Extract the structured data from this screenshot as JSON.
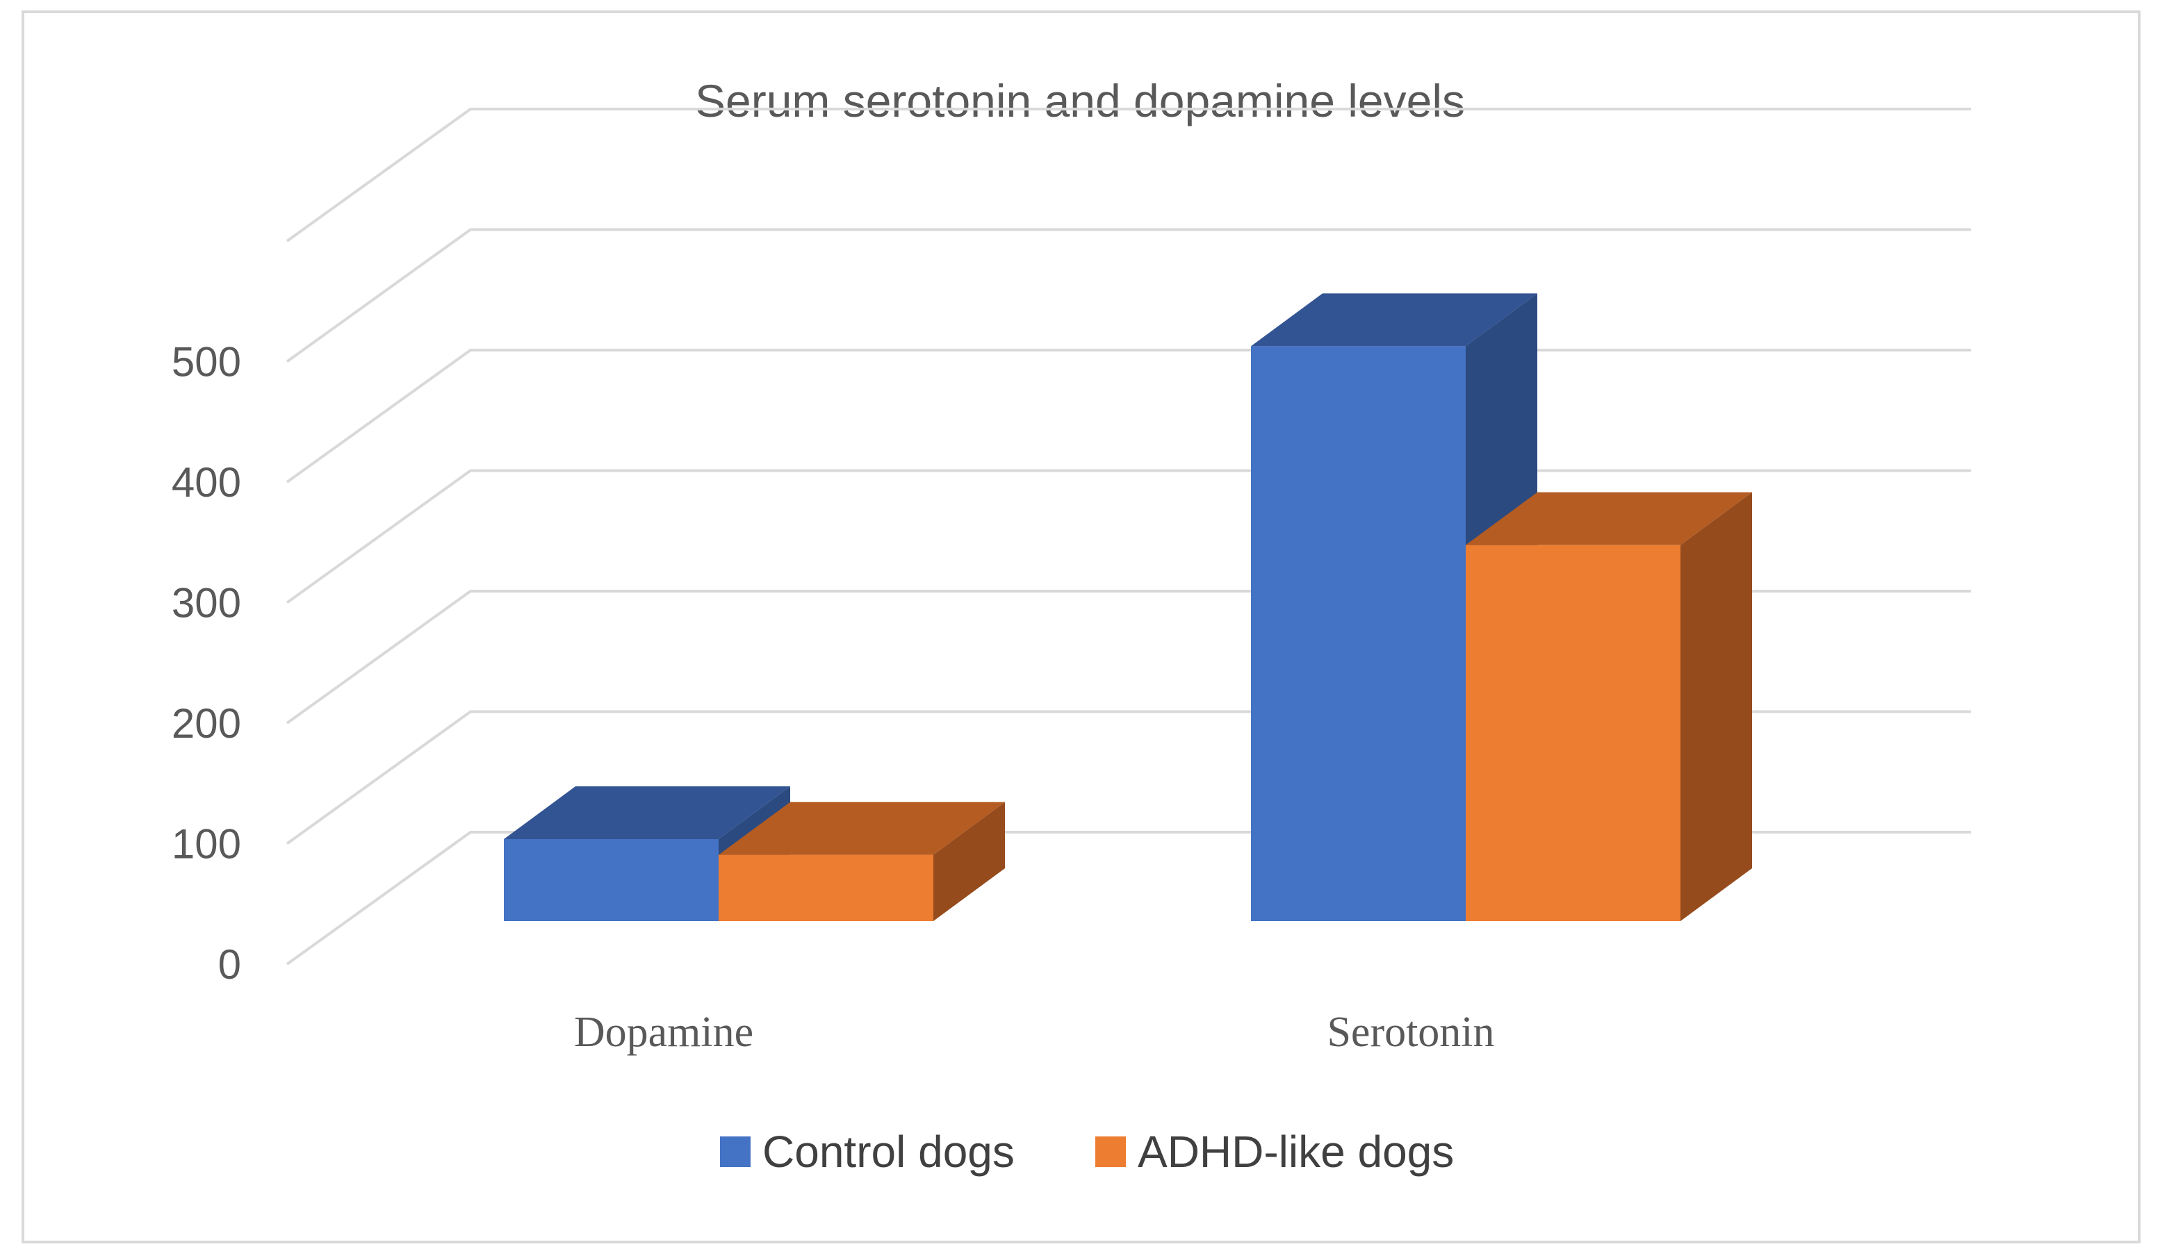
{
  "chart_data": {
    "type": "bar",
    "title": "Serum serotonin and dopamine levels",
    "categories": [
      "Dopamine",
      "Serotonin"
    ],
    "series": [
      {
        "name": "Control dogs",
        "values": [
          68,
          477
        ],
        "color": "#4472c4",
        "top_color": "#335493",
        "side_color": "#2b4a80"
      },
      {
        "name": "ADHD-like dogs",
        "values": [
          55,
          312
        ],
        "color": "#ed7d31",
        "top_color": "#b45c22",
        "side_color": "#964b1d"
      }
    ],
    "yticks": [
      0,
      100,
      200,
      300,
      400,
      500
    ],
    "ylim": [
      0,
      600
    ],
    "grid": true,
    "legend_position": "bottom",
    "style": "3d-clustered-column"
  }
}
